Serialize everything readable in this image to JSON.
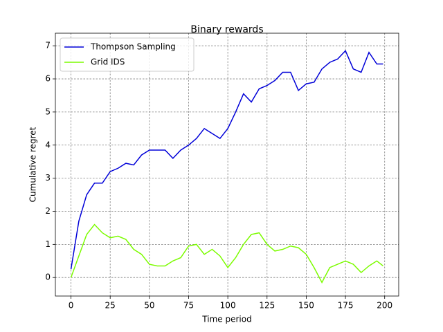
{
  "chart_data": {
    "type": "line",
    "title": "Binary rewards",
    "x_label": "Time period",
    "y_label": "Cumulative regret",
    "x": [
      0,
      5,
      10,
      15,
      20,
      25,
      30,
      35,
      40,
      45,
      50,
      55,
      60,
      65,
      70,
      75,
      80,
      85,
      90,
      95,
      100,
      105,
      110,
      115,
      120,
      125,
      130,
      135,
      140,
      145,
      150,
      155,
      160,
      165,
      170,
      175,
      180,
      185,
      190,
      195,
      199
    ],
    "series": [
      {
        "name": "Thompson Sampling",
        "color": "#0000d8",
        "values": [
          0.25,
          1.7,
          2.5,
          2.85,
          2.85,
          3.2,
          3.3,
          3.45,
          3.4,
          3.7,
          3.85,
          3.85,
          3.85,
          3.6,
          3.85,
          4.0,
          4.2,
          4.5,
          4.35,
          4.2,
          4.5,
          5.0,
          5.55,
          5.3,
          5.7,
          5.8,
          5.95,
          6.2,
          6.2,
          5.65,
          5.85,
          5.9,
          6.3,
          6.5,
          6.6,
          6.85,
          6.3,
          6.2,
          6.8,
          6.45,
          6.45
        ]
      },
      {
        "name": "Grid IDS",
        "color": "#7cfc00",
        "values": [
          0.0,
          0.65,
          1.3,
          1.6,
          1.35,
          1.2,
          1.25,
          1.15,
          0.85,
          0.7,
          0.4,
          0.35,
          0.35,
          0.5,
          0.6,
          0.95,
          1.0,
          0.7,
          0.85,
          0.65,
          0.3,
          0.6,
          1.0,
          1.3,
          1.35,
          1.0,
          0.8,
          0.85,
          0.95,
          0.9,
          0.7,
          0.3,
          -0.15,
          0.3,
          0.4,
          0.5,
          0.4,
          0.15,
          0.35,
          0.5,
          0.35
        ]
      }
    ],
    "xlim": [
      -9.95,
      208.95
    ],
    "xticks": [
      0,
      25,
      50,
      75,
      100,
      125,
      150,
      175,
      200
    ],
    "ylim": [
      -0.56,
      7.38
    ],
    "yticks": [
      0,
      1,
      2,
      3,
      4,
      5,
      6,
      7
    ],
    "grid": true,
    "legend": "upper-left"
  }
}
